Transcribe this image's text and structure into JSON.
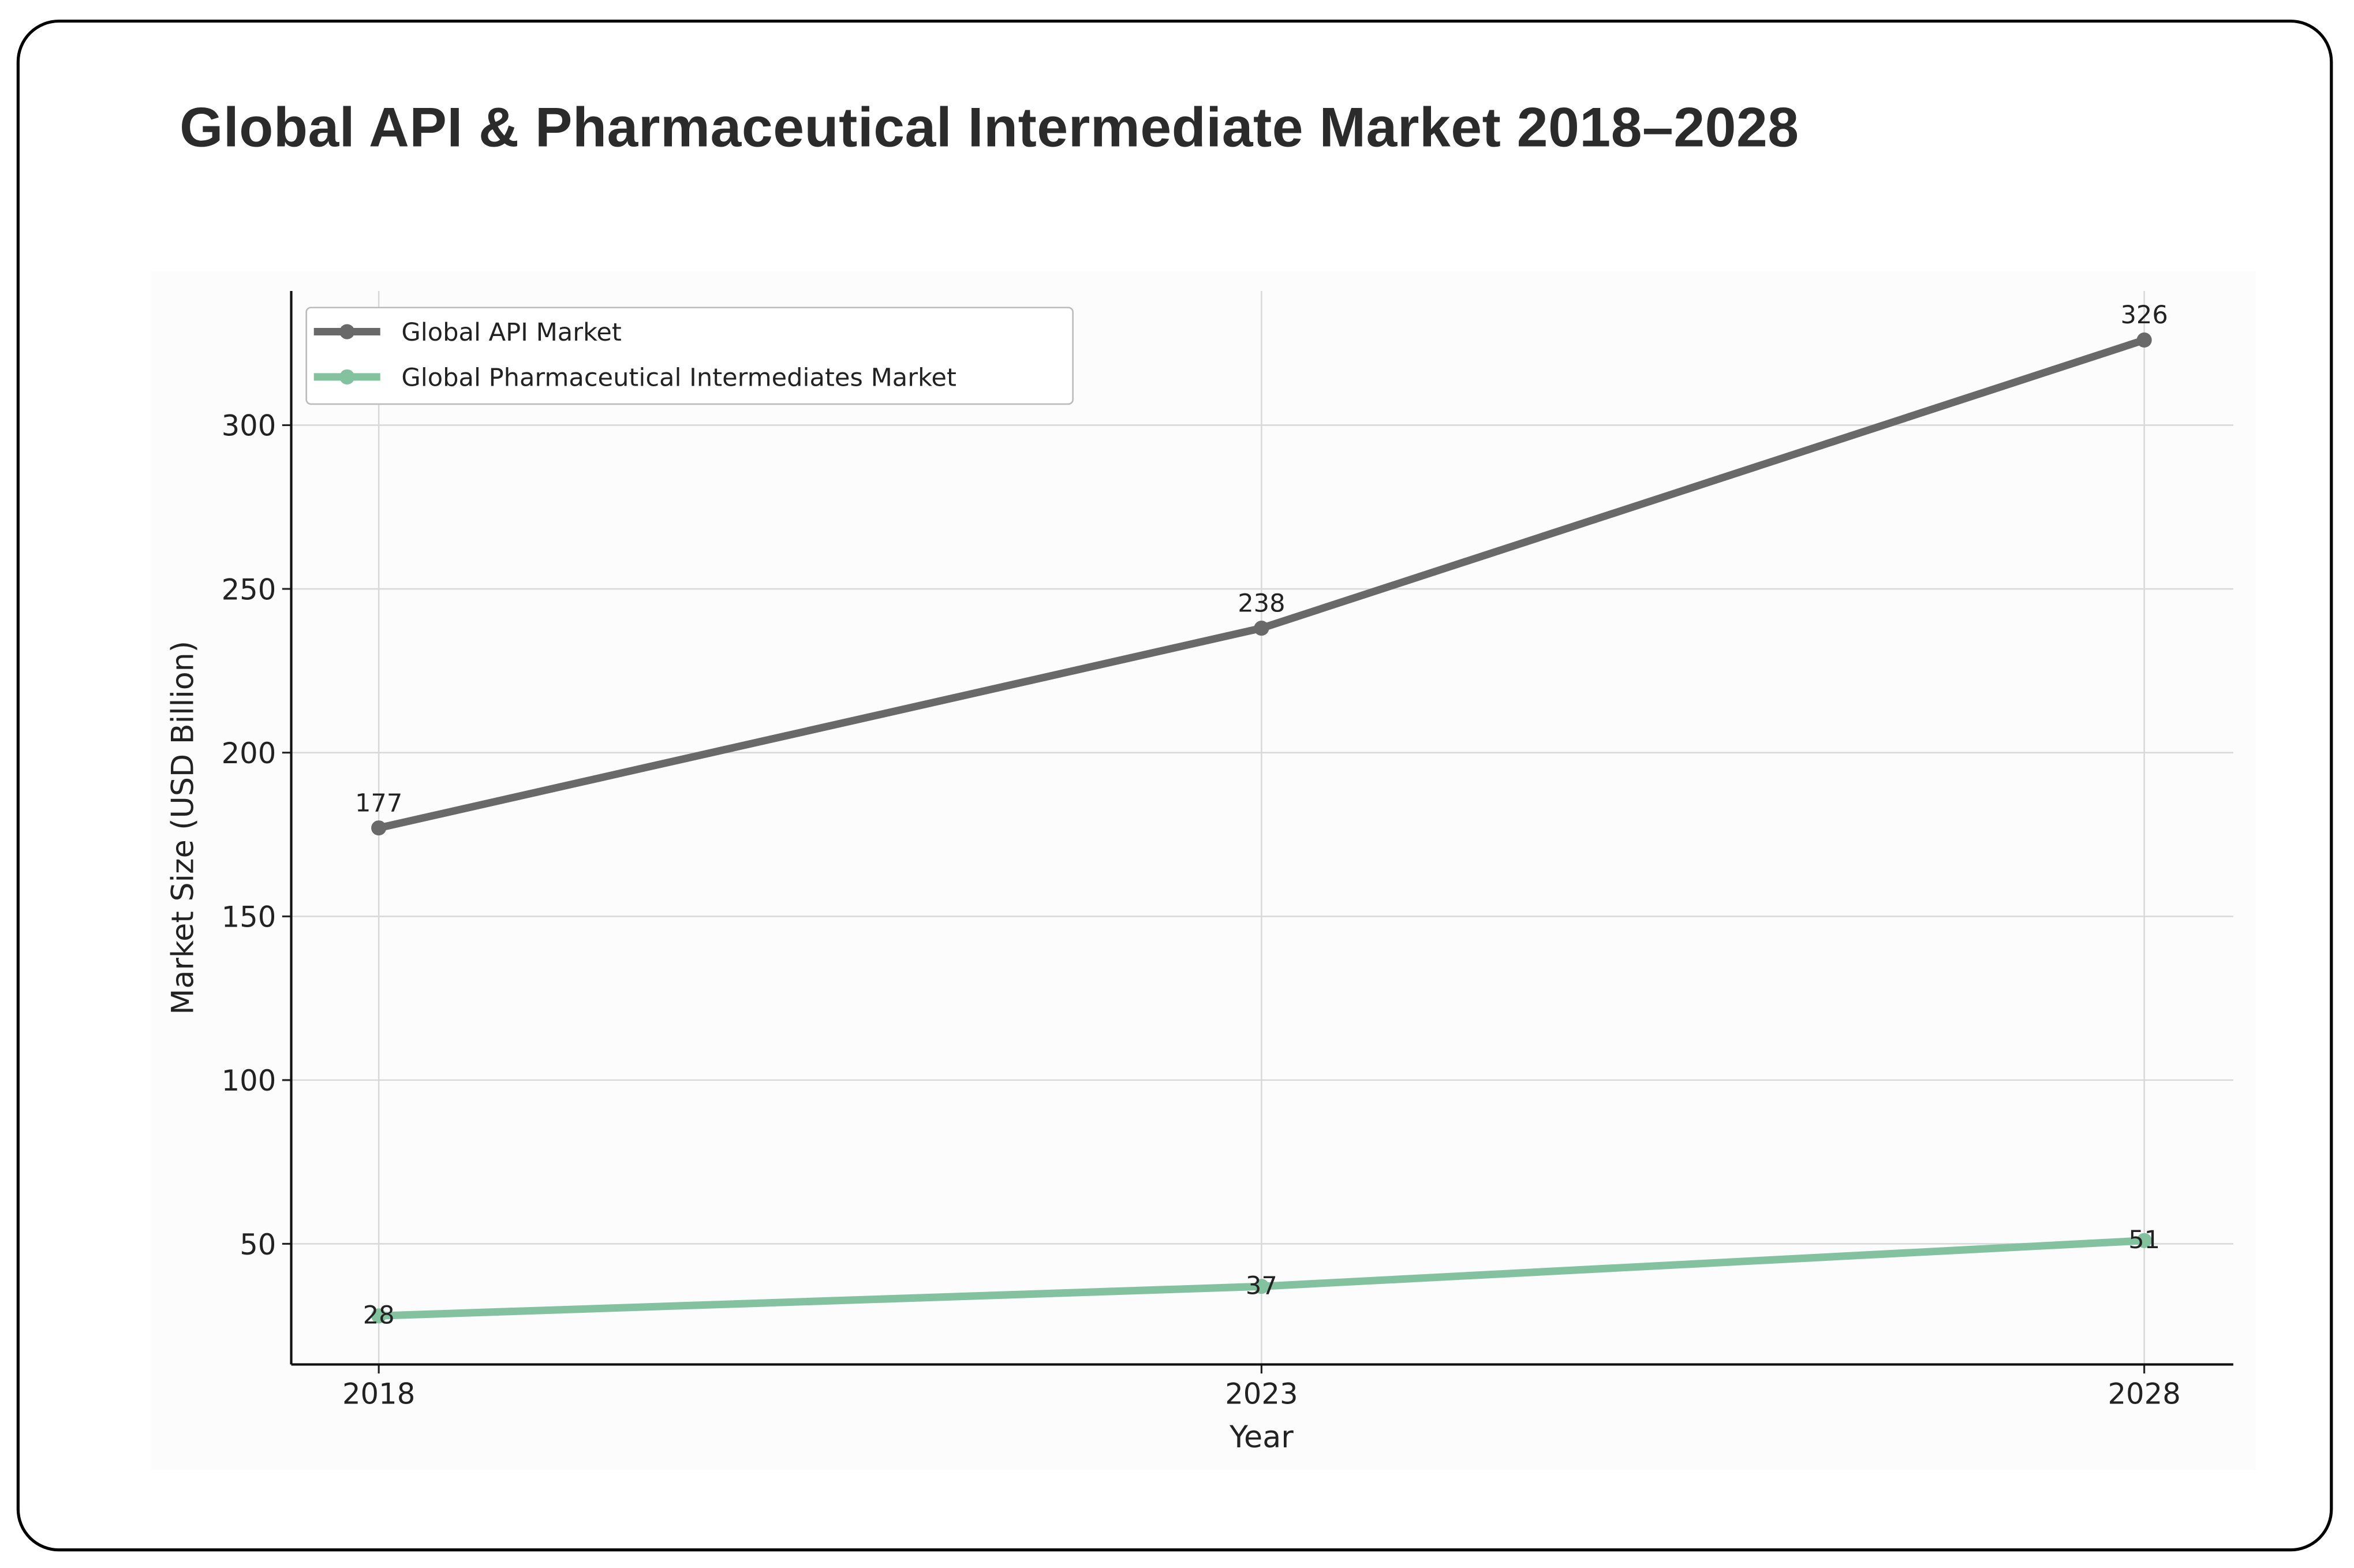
{
  "title": "Global API & Pharmaceutical Intermediate Market 2018–2028",
  "chart_data": {
    "type": "line",
    "title": "Global API & Pharmaceutical Intermediate Market 2018–2028",
    "xlabel": "Year",
    "ylabel": "Market Size (USD Billion)",
    "x": [
      2018,
      2023,
      2028
    ],
    "x_tick_labels": [
      "2018",
      "2023",
      "2028"
    ],
    "y_ticks": [
      50,
      100,
      150,
      200,
      250,
      300
    ],
    "y_tick_labels": [
      "50",
      "100",
      "150",
      "200",
      "250",
      "300"
    ],
    "ylim": [
      13,
      341
    ],
    "xlim": [
      2017.5,
      2028.5
    ],
    "grid": true,
    "legend_position": "top-left",
    "series": [
      {
        "name": "Global API Market",
        "values": [
          177,
          238,
          326
        ],
        "labels": [
          "177",
          "238",
          "326"
        ],
        "color": "#696969"
      },
      {
        "name": "Global Pharmaceutical Intermediates Market",
        "values": [
          28,
          37,
          51
        ],
        "labels": [
          "28",
          "37",
          "51"
        ],
        "color": "#83c29f"
      }
    ]
  }
}
